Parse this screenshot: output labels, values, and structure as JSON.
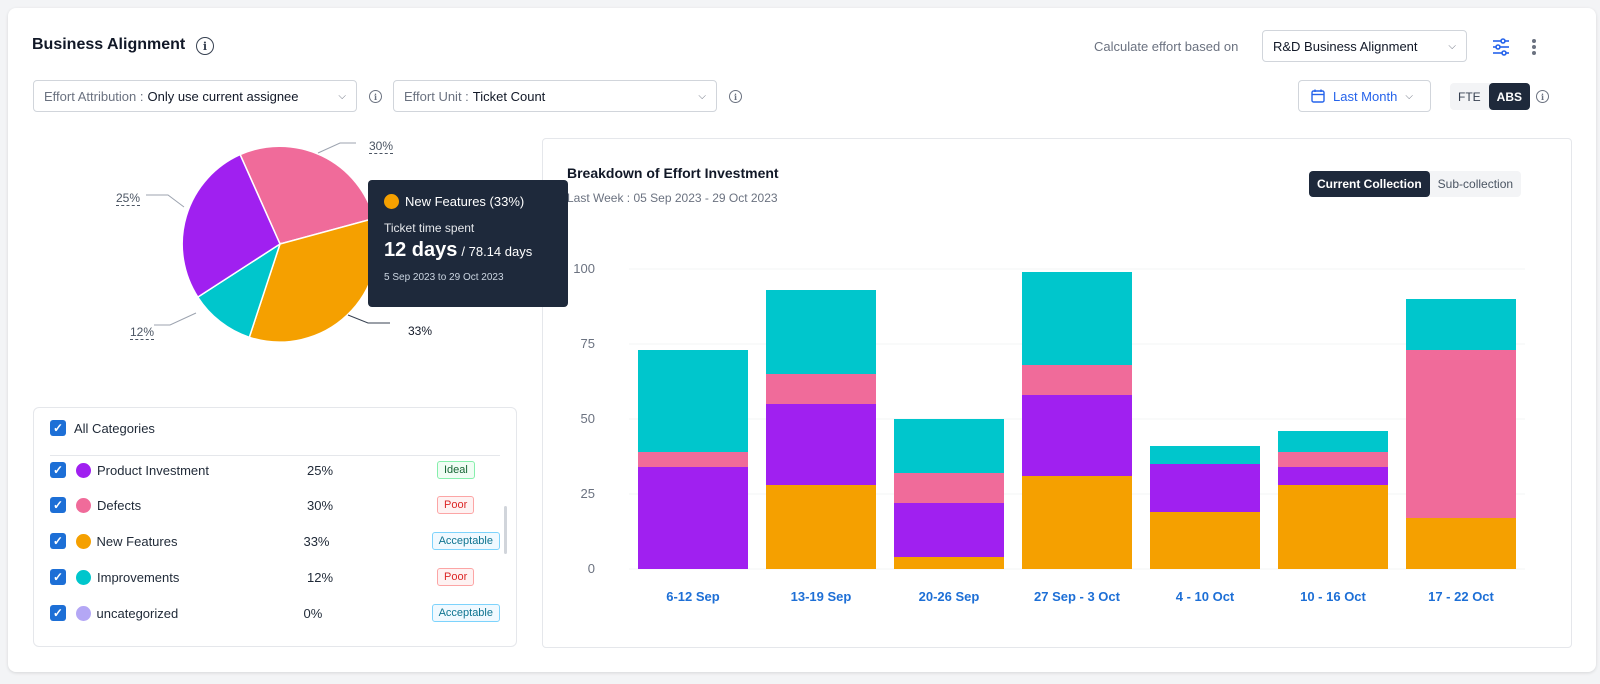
{
  "header": {
    "title": "Business Alignment",
    "calc_label": "Calculate effort based on",
    "calc_value": "R&D Business Alignment"
  },
  "filters": {
    "attribution_label": "Effort Attribution :",
    "attribution_value": "Only use current assignee",
    "unit_label": "Effort Unit :",
    "unit_value": "Ticket Count",
    "date_range": "Last Month",
    "toggle": [
      "FTE",
      "ABS"
    ],
    "toggle_active": "ABS"
  },
  "pie": {
    "labels": {
      "defects": "30%",
      "product": "25%",
      "improvements": "12%",
      "features": "33%"
    }
  },
  "tooltip": {
    "name": "New Features (33%)",
    "sub": "Ticket time spent",
    "value": "12 days",
    "total": "/ 78.14 days",
    "dates": "5 Sep 2023 to 29 Oct 2023"
  },
  "legend": {
    "all_label": "All Categories",
    "rows": [
      {
        "name": "Product Investment",
        "pct": "25%",
        "status": "Ideal",
        "color": "#a020f0"
      },
      {
        "name": "Defects",
        "pct": "30%",
        "status": "Poor",
        "color": "#f06b9a"
      },
      {
        "name": "New Features",
        "pct": "33%",
        "status": "Acceptable",
        "color": "#f5a000"
      },
      {
        "name": "Improvements",
        "pct": "12%",
        "status": "Poor",
        "color": "#00c6cc"
      },
      {
        "name": "uncategorized",
        "pct": "0%",
        "status": "Acceptable",
        "color": "#b4a7f5"
      }
    ]
  },
  "chart_data": {
    "type": "bar",
    "title": "Breakdown of Effort Investment",
    "subtitle": "Last Week : 05 Sep 2023 - 29 Oct 2023",
    "tabs": [
      "Current Collection",
      "Sub-collection"
    ],
    "active_tab": "Current Collection",
    "stacked": true,
    "categories": [
      "6-12 Sep",
      "13-19 Sep",
      "20-26 Sep",
      "27 Sep - 3 Oct",
      "4 - 10 Oct",
      "10 - 16 Oct",
      "17 - 22 Oct"
    ],
    "yticks": [
      0,
      25,
      50,
      75,
      100
    ],
    "ylim": [
      0,
      100
    ],
    "series": [
      {
        "name": "New Features",
        "color": "#f5a000",
        "values": [
          0,
          28,
          4,
          31,
          19,
          28,
          17
        ]
      },
      {
        "name": "Product Investment",
        "color": "#a020f0",
        "values": [
          34,
          27,
          18,
          27,
          16,
          6,
          0
        ]
      },
      {
        "name": "Defects",
        "color": "#f06b9a",
        "values": [
          5,
          10,
          10,
          10,
          0,
          5,
          56
        ]
      },
      {
        "name": "Improvements",
        "color": "#00c6cc",
        "values": [
          34,
          28,
          18,
          31,
          6,
          7,
          17
        ]
      }
    ]
  }
}
